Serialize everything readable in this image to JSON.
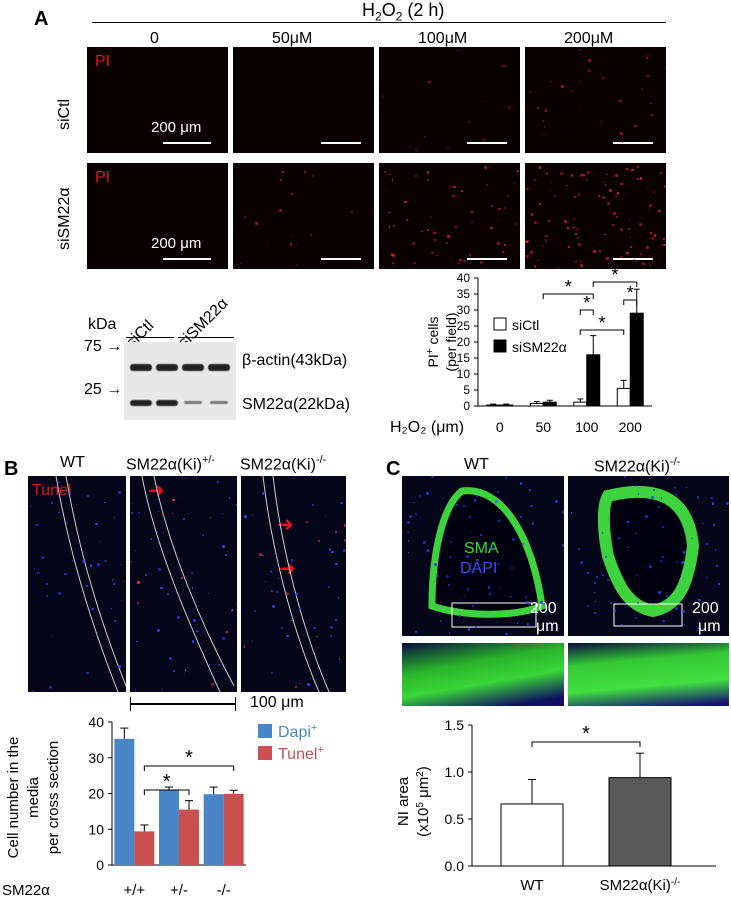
{
  "panel_a": {
    "letter": "A",
    "treatment_label": "H",
    "treatment_sub": "2",
    "treatment_rest": "O",
    "treatment_sub2": "2",
    "treatment_time": " (2 h)",
    "concentrations": [
      "0",
      "50μM",
      "100μM",
      "200μM"
    ],
    "rows": [
      "siCtl",
      "siSM22α"
    ],
    "stain": "PI",
    "scale_label": "200 μm",
    "blot": {
      "kda_label": "kDa",
      "lanes": [
        "siCtl",
        "siSM22α"
      ],
      "markers": [
        "75",
        "25"
      ],
      "bands": [
        "β-actin(43kDa)",
        "SM22α(22kDa)"
      ]
    }
  },
  "panel_b": {
    "letter": "B",
    "genotypes": [
      "WT",
      "SM22α(Ki)",
      "SM22α(Ki)"
    ],
    "genotype_sups": [
      "",
      "+/-",
      "-/-"
    ],
    "stain": "Tunel",
    "scale_label": "100 μm"
  },
  "panel_c": {
    "letter": "C",
    "genotypes": [
      "WT",
      "SM22α(Ki)"
    ],
    "genotype_sups": [
      "",
      "-/-"
    ],
    "stain_green": "SMA",
    "stain_blue": "DAPI",
    "scale_label_1": "200",
    "scale_label_2": "μm"
  },
  "chart_data": [
    {
      "type": "bar",
      "id": "pi-cells",
      "ylabel_1": "PI",
      "ylabel_sup": "+",
      "ylabel_2": " cells",
      "ylabel_3": "(per field)",
      "xlabel": "H₂O₂ (μm)",
      "categories": [
        "0",
        "50",
        "100",
        "200"
      ],
      "ylim": [
        0,
        40
      ],
      "yticks": [
        "0",
        "5",
        "10",
        "15",
        "20",
        "25",
        "30",
        "35",
        "40"
      ],
      "series": [
        {
          "name": "siCtl",
          "color": "#ffffff",
          "values": [
            0.3,
            0.8,
            1.2,
            5.5
          ],
          "errors": [
            0.3,
            0.6,
            1.0,
            2.5
          ]
        },
        {
          "name": "siSM22α",
          "color": "#000000",
          "values": [
            0.3,
            1.2,
            16,
            29
          ],
          "errors": [
            0.3,
            0.6,
            6,
            7.5
          ]
        }
      ],
      "significance": [
        "*",
        "*",
        "*",
        "*",
        "*"
      ]
    },
    {
      "type": "bar",
      "id": "cell-number",
      "ylabel_1": "Cell number in the",
      "ylabel_2": "media",
      "ylabel_3": "per cross section",
      "xlabel": "SM22α",
      "categories": [
        "+/+",
        "+/-",
        "-/-"
      ],
      "ylim": [
        0,
        40
      ],
      "yticks": [
        "0",
        "10",
        "20",
        "30",
        "40"
      ],
      "series": [
        {
          "name": "Dapi",
          "sup": "+",
          "color": "#4a86c6",
          "values": [
            35.3,
            21,
            19.8
          ],
          "errors": [
            3,
            0.8,
            2
          ]
        },
        {
          "name": "Tunel",
          "sup": "+",
          "color": "#c9504f",
          "values": [
            9.4,
            15.5,
            19.9
          ],
          "errors": [
            1.8,
            2.5,
            1
          ]
        }
      ],
      "significance": [
        "*",
        "*"
      ]
    },
    {
      "type": "bar",
      "id": "ni-area",
      "ylabel_1": "NI area",
      "ylabel_2": "(x10",
      "ylabel_sup1": "5",
      "ylabel_3": " μm",
      "ylabel_sup2": "2",
      "ylabel_4": ")",
      "categories": [
        "WT",
        "SM22α(Ki)"
      ],
      "category_sups": [
        "",
        "-/-"
      ],
      "ylim": [
        0,
        1.5
      ],
      "yticks": [
        "0.0",
        "0.5",
        "1.0",
        "1.5"
      ],
      "series": [
        {
          "name": "",
          "colors": [
            "#ffffff",
            "#595959"
          ],
          "values": [
            0.66,
            0.94
          ],
          "errors": [
            0.26,
            0.26
          ]
        }
      ],
      "significance": [
        "*"
      ]
    }
  ]
}
